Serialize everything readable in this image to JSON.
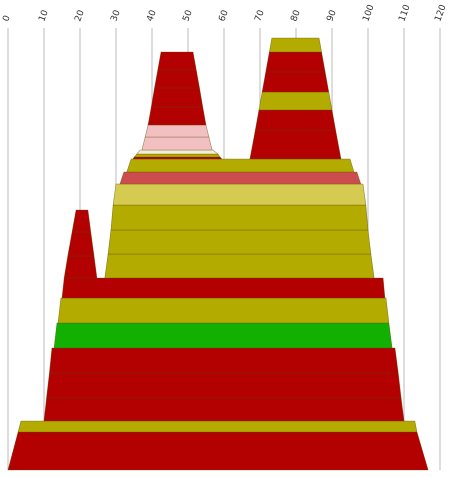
{
  "chart_data": {
    "type": "bands",
    "xlim": [
      0,
      120
    ],
    "xticks": [
      0,
      10,
      20,
      30,
      40,
      50,
      60,
      70,
      80,
      90,
      100,
      110,
      120
    ],
    "grid": true,
    "bands": [
      {
        "color": "#b30000",
        "left": [
          0,
          2.8
        ],
        "right": [
          116.7,
          113.6
        ]
      },
      {
        "color": "#b3ab00",
        "left": [
          2.8,
          3.6
        ],
        "right": [
          113.6,
          113
        ]
      },
      {
        "color": "#b30000",
        "left": [
          10,
          10.7
        ],
        "right": [
          110,
          109.2
        ]
      },
      {
        "color": "#b30000",
        "left": [
          10.7,
          11.5
        ],
        "right": [
          109.2,
          108.4
        ]
      },
      {
        "color": "#b30000",
        "left": [
          11.5,
          12.2
        ],
        "right": [
          108.4,
          107.5
        ]
      },
      {
        "color": "#12b000",
        "left": [
          12.8,
          13.6
        ],
        "right": [
          106.7,
          105.8
        ]
      },
      {
        "color": "#b3ab00",
        "left": [
          13.9,
          14.7
        ],
        "right": [
          105.8,
          105
        ]
      },
      {
        "color": "#b30000",
        "left": [
          15,
          15.6
        ],
        "right": [
          104.7,
          104.2
        ]
      },
      {
        "color": "#b30000",
        "left": [
          15.6,
          16.6
        ],
        "right": [
          24.7,
          23.9
        ]
      },
      {
        "color": "#b30000",
        "left": [
          16.6,
          17.8
        ],
        "right": [
          23.9,
          23
        ]
      },
      {
        "color": "#b30000",
        "left": [
          17.8,
          18.9
        ],
        "right": [
          23,
          22.2
        ]
      },
      {
        "color": "#b3ab00",
        "left": [
          26.9,
          27.8
        ],
        "right": [
          101.7,
          100.8
        ]
      },
      {
        "color": "#b3ab00",
        "left": [
          27.8,
          28.6
        ],
        "right": [
          100.8,
          100
        ]
      },
      {
        "color": "#b3ab00",
        "left": [
          28.6,
          29.2
        ],
        "right": [
          100,
          99.4
        ]
      },
      {
        "color": "#d4cb50",
        "left": [
          29.2,
          30
        ],
        "right": [
          99.4,
          98.6
        ]
      },
      {
        "color": "#cc4d4d",
        "left": [
          31.1,
          32.2
        ],
        "right": [
          98,
          96.9
        ]
      },
      {
        "color": "#b3ab00",
        "left": [
          33,
          34.2
        ],
        "right": [
          96.1,
          95
        ]
      },
      {
        "color": "#b30000",
        "left": [
          67.2,
          68.7
        ],
        "right": [
          92.5,
          91
        ]
      },
      {
        "color": "#b30000",
        "left": [
          68.7,
          69.7
        ],
        "right": [
          91,
          90
        ]
      },
      {
        "color": "#b3ab00",
        "left": [
          69.7,
          70.6
        ],
        "right": [
          90,
          89.1
        ]
      },
      {
        "color": "#b30000",
        "left": [
          70.6,
          71.6
        ],
        "right": [
          89.1,
          88.1
        ]
      },
      {
        "color": "#b30000",
        "left": [
          71.6,
          72.6
        ],
        "right": [
          88.1,
          87.1
        ]
      },
      {
        "color": "#b3ab00",
        "left": [
          72.6,
          73.3
        ],
        "right": [
          87.1,
          86.4
        ]
      },
      {
        "color": "#b30000",
        "left": [
          34.7,
          35.1
        ],
        "right": [
          59.4,
          58.9
        ]
      },
      {
        "color": "#b3ab00",
        "left": [
          35.1,
          35.8
        ],
        "right": [
          58.9,
          58.3
        ]
      },
      {
        "color": "#f5ecd8",
        "left": [
          35.8,
          36.7
        ],
        "right": [
          58.3,
          56.9
        ]
      },
      {
        "color": "#f2c0c0",
        "left": [
          37.2,
          38.1
        ],
        "right": [
          56.7,
          55.8
        ]
      },
      {
        "color": "#f2c0c0",
        "left": [
          38.1,
          38.9
        ],
        "right": [
          55.8,
          55
        ]
      },
      {
        "color": "#b30000",
        "left": [
          38.9,
          39.8
        ],
        "right": [
          55,
          54.1
        ]
      },
      {
        "color": "#b30000",
        "left": [
          39.8,
          40.7
        ],
        "right": [
          54.1,
          53.2
        ]
      },
      {
        "color": "#b30000",
        "left": [
          40.7,
          41.6
        ],
        "right": [
          53.2,
          52.3
        ]
      },
      {
        "color": "#b30000",
        "left": [
          41.6,
          42.5
        ],
        "right": [
          52.3,
          51.4
        ]
      }
    ]
  }
}
